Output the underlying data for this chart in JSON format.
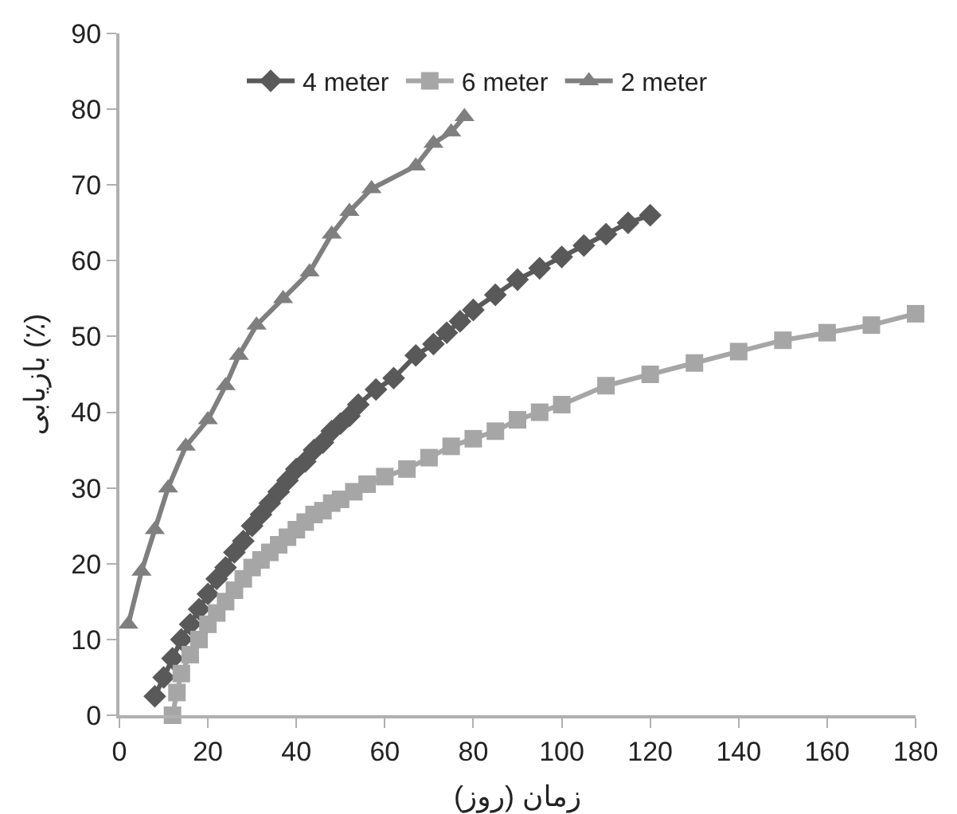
{
  "chart_data": {
    "type": "line",
    "xlabel": "زمان (روز)",
    "ylabel": "بازیابی (٪)",
    "xlim": [
      0,
      180
    ],
    "ylim": [
      0,
      90
    ],
    "xticks": [
      0,
      20,
      40,
      60,
      80,
      100,
      120,
      140,
      160,
      180
    ],
    "yticks": [
      0,
      10,
      20,
      30,
      40,
      50,
      60,
      70,
      80,
      90
    ],
    "grid": false,
    "legend": "top",
    "line_style": "solid",
    "series": [
      {
        "name": "4 meter",
        "color": "#595959",
        "marker": "diamond",
        "x": [
          8,
          10,
          12,
          14,
          16,
          18,
          20,
          22,
          24,
          26,
          28,
          30,
          32,
          34,
          36,
          38,
          40,
          42,
          44,
          46,
          48,
          50,
          52,
          54,
          58,
          62,
          67,
          71,
          74,
          77,
          80,
          85,
          90,
          95,
          100,
          105,
          110,
          115,
          120
        ],
        "values": [
          2.5,
          5,
          7.5,
          10,
          12,
          14,
          16,
          18,
          19.5,
          21.5,
          23,
          25,
          26.5,
          28,
          29.5,
          31,
          32.5,
          33.5,
          35,
          36,
          37.5,
          38.5,
          39.5,
          41,
          43,
          44.5,
          47.5,
          49,
          50.5,
          52,
          53.5,
          55.5,
          57.5,
          59,
          60.5,
          62,
          63.5,
          65,
          66
        ]
      },
      {
        "name": "6 meter",
        "color": "#a6a6a6",
        "marker": "square",
        "x": [
          12,
          13,
          14,
          16,
          18,
          20,
          22,
          24,
          26,
          28,
          30,
          32,
          34,
          36,
          38,
          40,
          42,
          44,
          46,
          48,
          50,
          53,
          56,
          60,
          65,
          70,
          75,
          80,
          85,
          90,
          95,
          100,
          110,
          120,
          130,
          140,
          150,
          160,
          170,
          180
        ],
        "values": [
          0,
          3,
          5.5,
          8,
          10,
          12,
          13.5,
          15,
          16.5,
          18,
          19.5,
          20.5,
          21.5,
          22.5,
          23.5,
          24.5,
          25.5,
          26.5,
          27,
          28,
          28.5,
          29.5,
          30.5,
          31.5,
          32.5,
          34,
          35.5,
          36.5,
          37.5,
          39,
          40,
          41,
          43.5,
          45,
          46.5,
          48,
          49.5,
          50.5,
          51.5,
          53
        ]
      },
      {
        "name": "2 meter",
        "color": "#7f7f7f",
        "marker": "triangle",
        "x": [
          2,
          5,
          8,
          11,
          15,
          20,
          24,
          27,
          31,
          37,
          43,
          48,
          52,
          57,
          67,
          71,
          75,
          78
        ],
        "values": [
          12,
          19,
          24.5,
          30,
          35.5,
          39,
          43.5,
          47.5,
          51.5,
          55,
          58.5,
          63.5,
          66.5,
          69.5,
          72.5,
          75.5,
          77,
          79
        ]
      }
    ]
  }
}
